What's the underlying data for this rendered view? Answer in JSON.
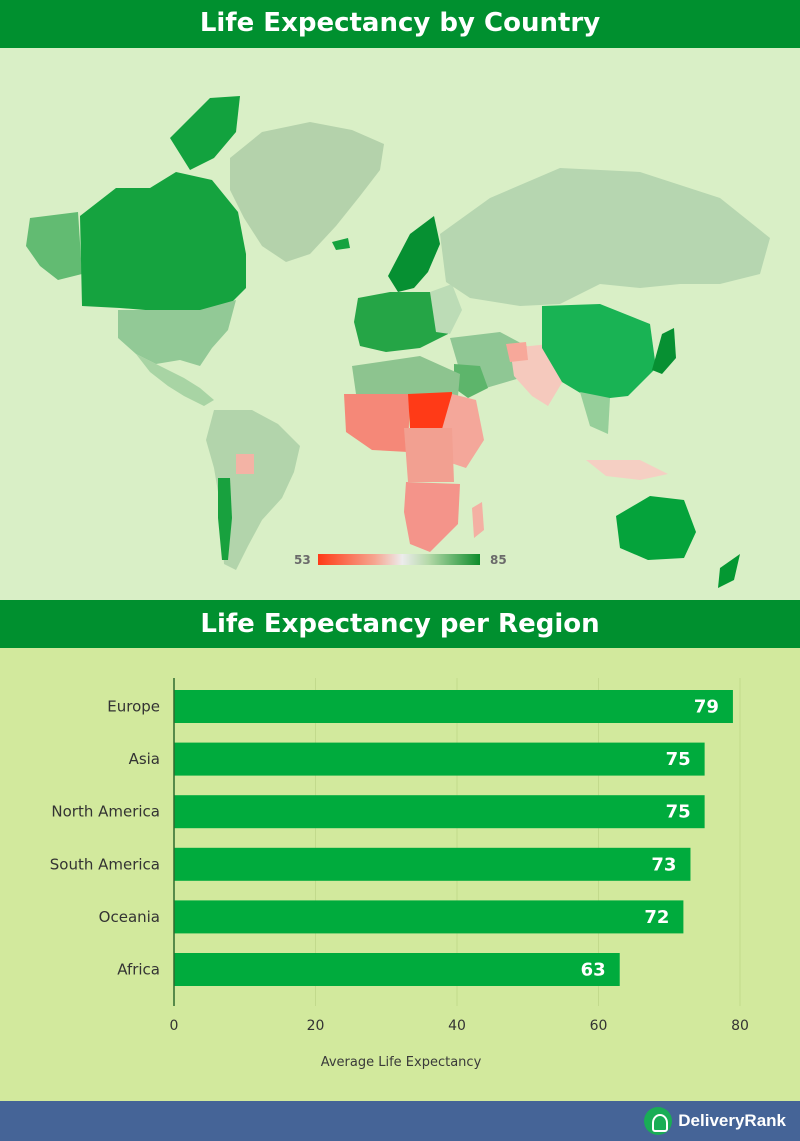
{
  "map": {
    "title": "Life Expectancy by Country",
    "legend": {
      "min_label": "53",
      "max_label": "85"
    }
  },
  "chart": {
    "title": "Life Expectancy per Region"
  },
  "chart_data": {
    "type": "bar",
    "orientation": "horizontal",
    "categories": [
      "Europe",
      "Asia",
      "North America",
      "South America",
      "Oceania",
      "Africa"
    ],
    "values": [
      79,
      75,
      75,
      73,
      72,
      63
    ],
    "value_labels": [
      "79",
      "75",
      "75",
      "73",
      "72",
      "63"
    ],
    "xlabel": "Average Life Expectancy",
    "xlim": [
      0,
      80
    ],
    "xticks": [
      0,
      20,
      40,
      60,
      80
    ],
    "xtick_labels": [
      "0",
      "20",
      "40",
      "60",
      "80"
    ],
    "grid": true,
    "bar_color": "#00ab3d"
  },
  "footer": {
    "brand": "DeliveryRank"
  },
  "colors": {
    "banner": "#00902f",
    "map_bg": "#d9efc6",
    "chart_bg": "#d2e99d",
    "footer_bg": "#456497",
    "high": "#0e8c2b",
    "low": "#ff3a17"
  }
}
